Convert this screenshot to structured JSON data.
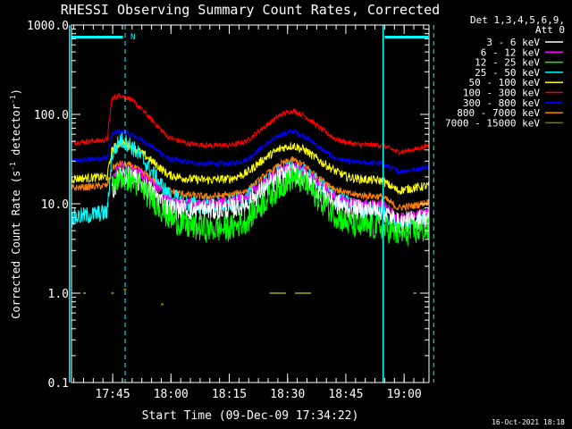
{
  "chart_data": {
    "type": "line",
    "title": "RHESSI Observing Summary Count Rates, Corrected",
    "xlabel": "Start Time (09-Dec-09 17:34:22)",
    "ylabel_main": "Corrected Count Rate (s",
    "ylabel_sup1": "-1",
    "ylabel_mid": " detector",
    "ylabel_sup2": "-1",
    "ylabel_end": ")",
    "y_scale": "log",
    "ylim": [
      0.1,
      1000
    ],
    "xlim_minutes": [
      0,
      92
    ],
    "y_ticks": [
      {
        "value": 0.1,
        "label": "0.1"
      },
      {
        "value": 1,
        "label": "1.0"
      },
      {
        "value": 10,
        "label": "10.0"
      },
      {
        "value": 100,
        "label": "100.0"
      },
      {
        "value": 1000,
        "label": "1000.0"
      }
    ],
    "x_ticks": [
      {
        "minutes": 10.6,
        "label": "17:45"
      },
      {
        "minutes": 25.6,
        "label": "18:00"
      },
      {
        "minutes": 40.6,
        "label": "18:15"
      },
      {
        "minutes": 55.6,
        "label": "18:30"
      },
      {
        "minutes": 70.6,
        "label": "18:45"
      },
      {
        "minutes": 85.6,
        "label": "19:00"
      }
    ],
    "legend_header": [
      "Det 1,3,4,5,6,9,",
      "Att 0"
    ],
    "legend_position": "right",
    "footer_timestamp": "16-Oct-2021 18:18",
    "night_marker": "N",
    "vlines_solid_minutes": [
      -0.5,
      80.2
    ],
    "vlines_dashed_minutes": [
      13.8,
      93.2
    ],
    "flag_bars": [
      {
        "start_minutes": 0,
        "end_minutes": 13.2
      },
      {
        "start_minutes": 80.6,
        "end_minutes": 91.8
      }
    ],
    "breakpoint_x": [
      0,
      9.2,
      10.4,
      12.5,
      15,
      18,
      22,
      25,
      30,
      35,
      41,
      45,
      50,
      54,
      57,
      60,
      64,
      68,
      71,
      74,
      80,
      84,
      88,
      92
    ],
    "series": [
      {
        "name": "3 - 6 keV",
        "color": "#ffffff",
        "noise": 0.12,
        "values": [
          null,
          null,
          14,
          21,
          20,
          17,
          12,
          9,
          8.5,
          8.5,
          8.7,
          10,
          15,
          20,
          22,
          19,
          14,
          10,
          9,
          8.5,
          8.5,
          6,
          6.5,
          7
        ]
      },
      {
        "name": "6 - 12 keV",
        "color": "#ff00ff",
        "noise": 0.06,
        "values": [
          null,
          null,
          20,
          26,
          25,
          21,
          15,
          11,
          10,
          10,
          10.5,
          12,
          18,
          24,
          26,
          23,
          17,
          12,
          10.5,
          10,
          10,
          7,
          7.5,
          8
        ]
      },
      {
        "name": "12 - 25 keV",
        "color": "#00ff00",
        "noise": 0.15,
        "values": [
          null,
          null,
          15,
          20,
          19,
          15,
          10,
          7,
          5.5,
          5.2,
          5.3,
          6.5,
          11,
          16,
          20,
          17,
          11,
          7.5,
          6,
          5.5,
          5.5,
          4.5,
          4.8,
          5.2
        ]
      },
      {
        "name": "25 - 50 keV",
        "color": "#00ffff",
        "noise": 0.1,
        "values": [
          7,
          8,
          35,
          52,
          46,
          33,
          19,
          12.5,
          10,
          9.5,
          9.8,
          11.5,
          17,
          23,
          25,
          22,
          16,
          11.5,
          10,
          9,
          8,
          6,
          6.5,
          7.5
        ]
      },
      {
        "name": "50 - 100 keV",
        "color": "#ffff00",
        "noise": 0.05,
        "values": [
          19,
          20,
          40,
          48,
          45,
          37,
          27,
          21,
          19,
          18.5,
          19,
          22,
          33,
          42,
          45,
          40,
          30,
          23,
          20,
          19,
          18,
          14,
          15,
          16
        ]
      },
      {
        "name": "100 - 300 keV",
        "color": "#ff0000",
        "noise": 0.03,
        "values": [
          48,
          52,
          150,
          165,
          150,
          115,
          75,
          55,
          47,
          45,
          45,
          50,
          75,
          100,
          110,
          97,
          70,
          53,
          48,
          46,
          45,
          38,
          40,
          45
        ]
      },
      {
        "name": "300 - 800 keV",
        "color": "#0000ff",
        "noise": 0.03,
        "values": [
          30,
          33,
          60,
          65,
          60,
          52,
          40,
          32,
          29,
          28,
          28,
          31,
          46,
          60,
          65,
          57,
          42,
          32,
          30,
          29,
          28,
          23,
          24,
          26
        ]
      },
      {
        "name": "800 - 7000 keV",
        "color": "#ff8000",
        "noise": 0.04,
        "values": [
          15,
          16,
          25,
          28,
          27,
          23,
          17,
          14,
          12.5,
          12,
          12.5,
          14,
          21,
          28,
          31,
          27,
          19,
          14.5,
          13,
          12.5,
          12,
          9,
          9.5,
          10.5
        ]
      },
      {
        "name": "7000 - 15000 keV",
        "color": "#808000",
        "noise": 0,
        "values": [
          null,
          null,
          1,
          null,
          null,
          null,
          null,
          null,
          null,
          null,
          null,
          null,
          null,
          1,
          1,
          1,
          null,
          null,
          null,
          null,
          null,
          null,
          null,
          null
        ]
      }
    ]
  }
}
